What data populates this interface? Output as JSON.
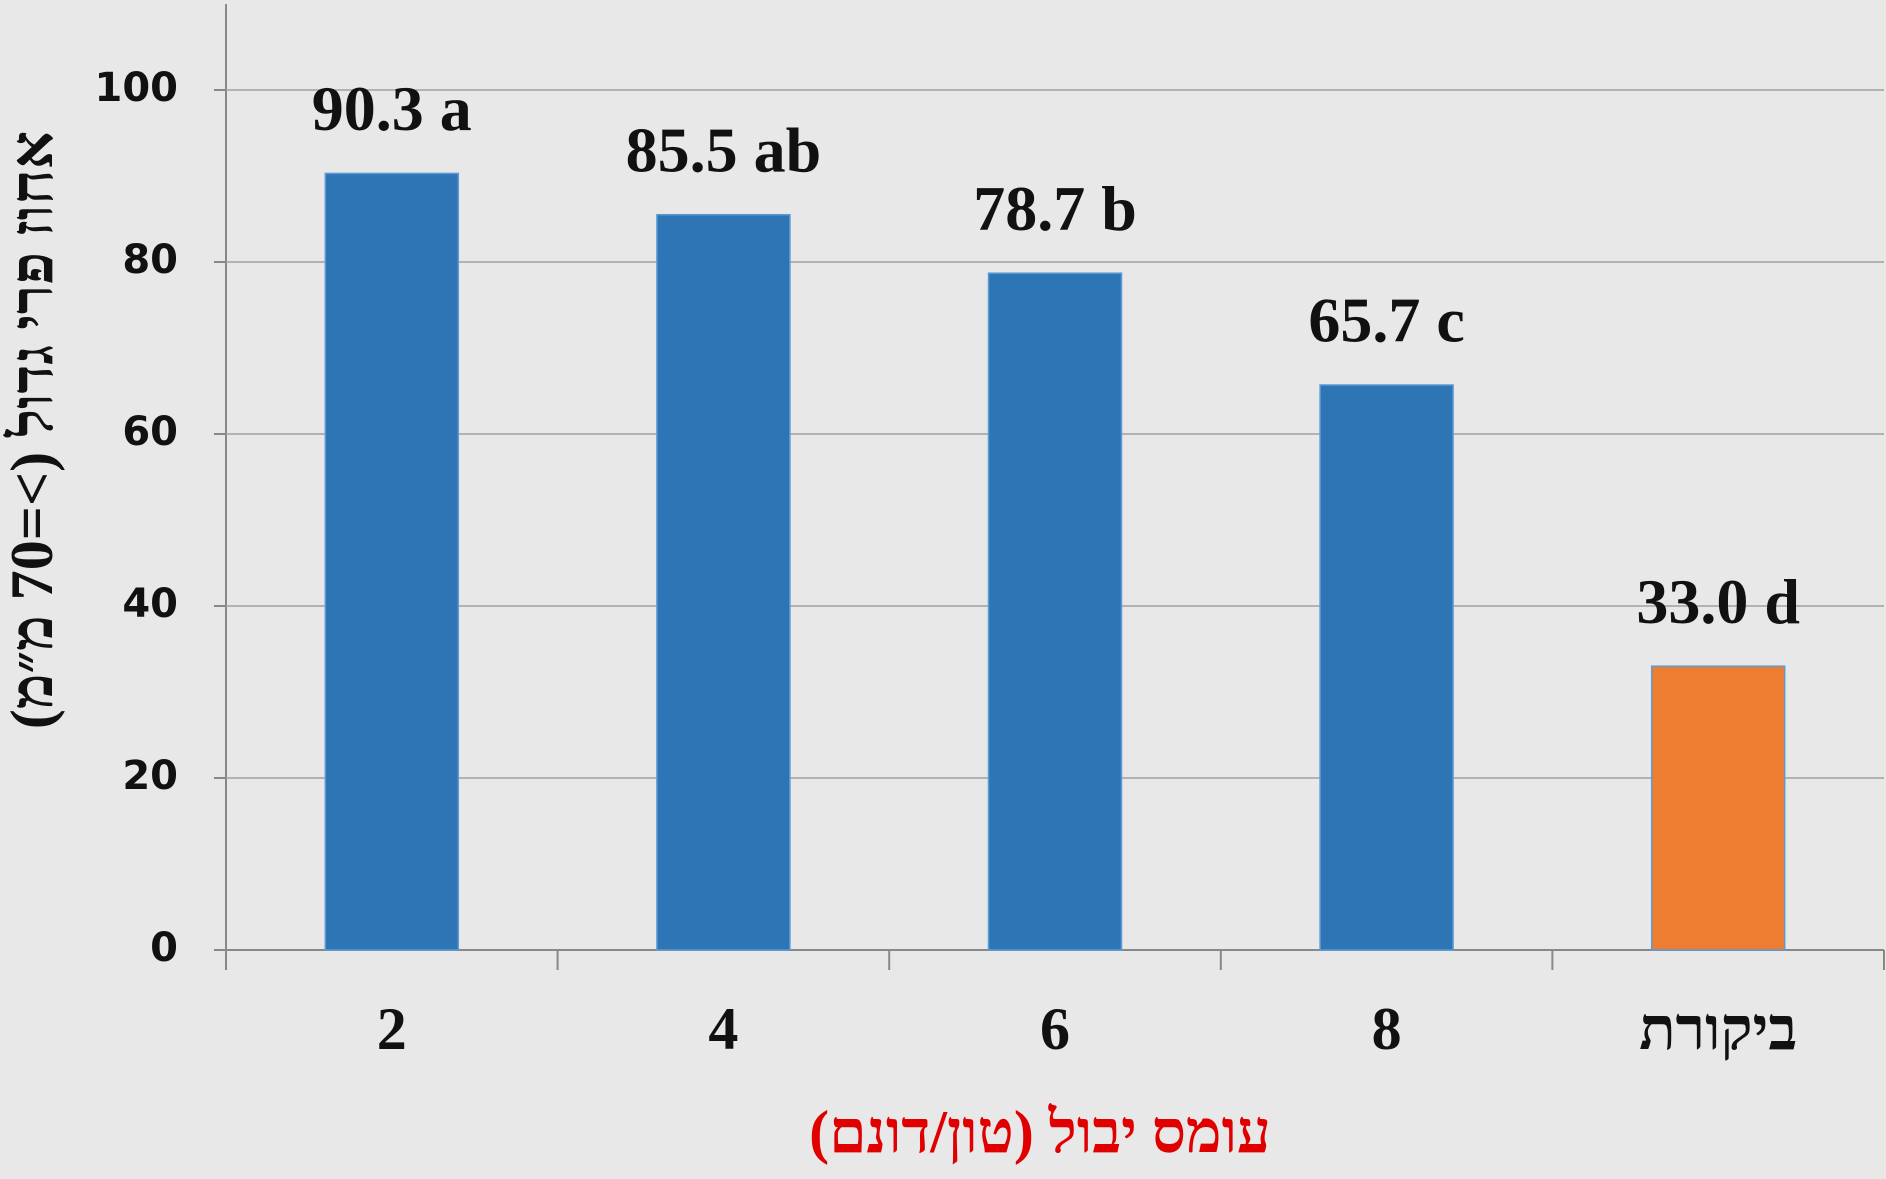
{
  "chart_data": {
    "type": "bar",
    "x_label": "עומס יבול (טון/דונם)",
    "y_label": "אחוז פרי גדול (>=70 מ״מ)",
    "categories": [
      "2",
      "4",
      "6",
      "8",
      "ביקורת"
    ],
    "values": [
      90.3,
      85.5,
      78.7,
      65.7,
      33.0
    ],
    "value_labels": [
      "90.3 a",
      "85.5 ab",
      "78.7 b",
      "65.7 c",
      "33.0 d"
    ],
    "colors": [
      "#2e75b6",
      "#2e75b6",
      "#2e75b6",
      "#2e75b6",
      "#ed7d31"
    ],
    "ylim": [
      0,
      110
    ],
    "yticks": [
      0,
      20,
      40,
      60,
      80,
      100
    ],
    "grid": true
  }
}
